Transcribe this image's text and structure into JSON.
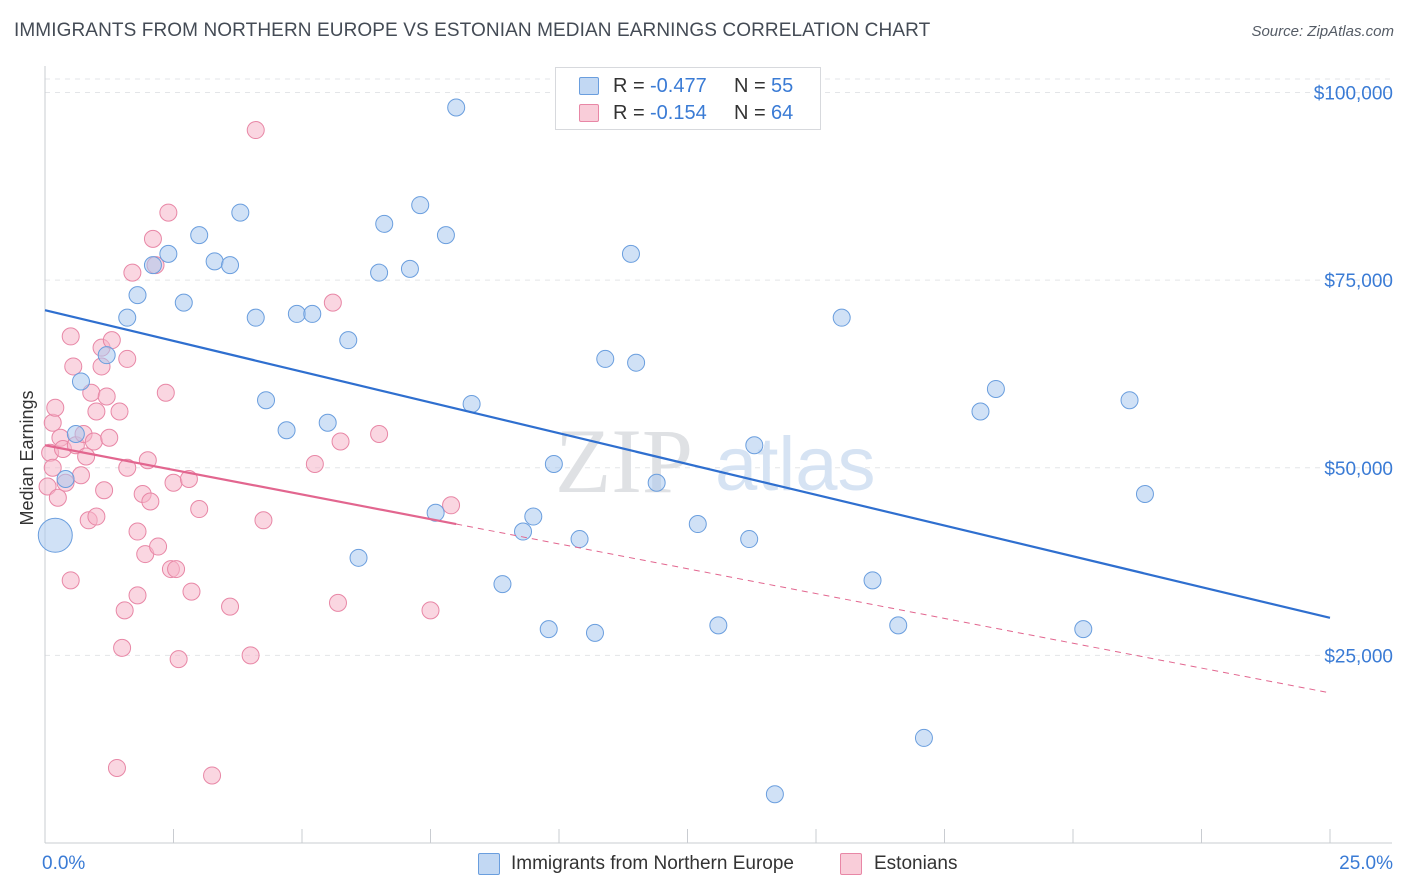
{
  "title": "IMMIGRANTS FROM NORTHERN EUROPE VS ESTONIAN MEDIAN EARNINGS CORRELATION CHART",
  "source": "Source: ZipAtlas.com",
  "watermark": {
    "zip": "ZIP",
    "atlas": "atlas"
  },
  "colors": {
    "blue_fill": "#a9c9ef",
    "blue_stroke": "#6a9ede",
    "blue_line": "#2f6fcf",
    "pink_fill": "#f6b5c8",
    "pink_stroke": "#e887a6",
    "pink_line": "#e2668f",
    "tick_text": "#3a7bd5",
    "grid": "#e3e5e8"
  },
  "legend": {
    "rows": [
      {
        "r_label": "R =",
        "r_value": "-0.477",
        "n_label": "N =",
        "n_value": "55"
      },
      {
        "r_label": "R =",
        "r_value": "-0.154",
        "n_label": "N =",
        "n_value": "64"
      }
    ]
  },
  "bottom_legend": [
    "Immigrants from Northern Europe",
    "Estonians"
  ],
  "chart_data": {
    "type": "scatter",
    "ylabel": "Median Earnings",
    "xlabel": "",
    "xlim": [
      0,
      25
    ],
    "ylim": [
      0,
      103000
    ],
    "x_tick_labels": [
      {
        "value": 0,
        "label": "0.0%"
      },
      {
        "value": 25,
        "label": "25.0%"
      }
    ],
    "y_tick_labels": [
      {
        "value": 25000,
        "label": "$25,000"
      },
      {
        "value": 50000,
        "label": "$50,000"
      },
      {
        "value": 75000,
        "label": "$75,000"
      },
      {
        "value": 100000,
        "label": "$100,000"
      }
    ],
    "grid": "horizontal dashed",
    "legend_position": "top-center",
    "series": [
      {
        "name": "Immigrants from Northern Europe",
        "color": "blue",
        "trend": {
          "x": [
            0,
            25
          ],
          "y": [
            71000,
            30000
          ],
          "dashed_to": null
        },
        "points": [
          [
            0.2,
            41000
          ],
          [
            0.4,
            48500
          ],
          [
            0.6,
            54500
          ],
          [
            0.7,
            61500
          ],
          [
            1.2,
            65000
          ],
          [
            1.6,
            70000
          ],
          [
            1.8,
            73000
          ],
          [
            2.1,
            77000
          ],
          [
            2.4,
            78500
          ],
          [
            2.7,
            72000
          ],
          [
            3.0,
            81000
          ],
          [
            3.3,
            77500
          ],
          [
            3.6,
            77000
          ],
          [
            3.8,
            84000
          ],
          [
            4.1,
            70000
          ],
          [
            4.3,
            59000
          ],
          [
            4.7,
            55000
          ],
          [
            4.9,
            70500
          ],
          [
            5.2,
            70500
          ],
          [
            5.5,
            56000
          ],
          [
            5.9,
            67000
          ],
          [
            6.1,
            38000
          ],
          [
            6.5,
            76000
          ],
          [
            6.6,
            82500
          ],
          [
            7.1,
            76500
          ],
          [
            7.3,
            85000
          ],
          [
            7.6,
            44000
          ],
          [
            7.8,
            81000
          ],
          [
            8.0,
            98000
          ],
          [
            8.3,
            58500
          ],
          [
            8.9,
            34500
          ],
          [
            9.3,
            41500
          ],
          [
            9.5,
            43500
          ],
          [
            9.8,
            28500
          ],
          [
            9.9,
            50500
          ],
          [
            10.4,
            40500
          ],
          [
            10.7,
            28000
          ],
          [
            10.9,
            64500
          ],
          [
            11.4,
            78500
          ],
          [
            11.5,
            64000
          ],
          [
            11.9,
            48000
          ],
          [
            12.7,
            42500
          ],
          [
            13.1,
            29000
          ],
          [
            13.7,
            40500
          ],
          [
            13.8,
            53000
          ],
          [
            14.2,
            6500
          ],
          [
            15.5,
            70000
          ],
          [
            16.1,
            35000
          ],
          [
            16.6,
            29000
          ],
          [
            17.1,
            14000
          ],
          [
            18.2,
            57500
          ],
          [
            18.5,
            60500
          ],
          [
            20.2,
            28500
          ],
          [
            21.1,
            59000
          ],
          [
            21.4,
            46500
          ]
        ]
      },
      {
        "name": "Estonians",
        "color": "pink",
        "trend": {
          "x": [
            0,
            8.0
          ],
          "y": [
            53000,
            42500
          ],
          "dashed_to": [
            25,
            20000
          ]
        },
        "points": [
          [
            0.05,
            47500
          ],
          [
            0.1,
            52000
          ],
          [
            0.15,
            56000
          ],
          [
            0.2,
            58000
          ],
          [
            0.3,
            54000
          ],
          [
            0.35,
            52500
          ],
          [
            0.4,
            48000
          ],
          [
            0.5,
            67500
          ],
          [
            0.5,
            35000
          ],
          [
            0.55,
            63500
          ],
          [
            0.6,
            53000
          ],
          [
            0.7,
            49000
          ],
          [
            0.75,
            54500
          ],
          [
            0.8,
            51500
          ],
          [
            0.85,
            43000
          ],
          [
            0.9,
            60000
          ],
          [
            0.95,
            53500
          ],
          [
            1.0,
            43500
          ],
          [
            1.0,
            57500
          ],
          [
            1.1,
            66000
          ],
          [
            1.1,
            63500
          ],
          [
            1.15,
            47000
          ],
          [
            1.2,
            59500
          ],
          [
            1.25,
            54000
          ],
          [
            1.3,
            67000
          ],
          [
            1.4,
            10000
          ],
          [
            1.45,
            57500
          ],
          [
            1.5,
            26000
          ],
          [
            1.55,
            31000
          ],
          [
            1.6,
            64500
          ],
          [
            1.6,
            50000
          ],
          [
            1.7,
            76000
          ],
          [
            1.8,
            41500
          ],
          [
            1.8,
            33000
          ],
          [
            1.9,
            46500
          ],
          [
            1.95,
            38500
          ],
          [
            2.0,
            51000
          ],
          [
            2.05,
            45500
          ],
          [
            2.1,
            80500
          ],
          [
            2.15,
            77000
          ],
          [
            2.2,
            39500
          ],
          [
            2.35,
            60000
          ],
          [
            2.4,
            84000
          ],
          [
            2.45,
            36500
          ],
          [
            2.5,
            48000
          ],
          [
            2.55,
            36500
          ],
          [
            2.6,
            24500
          ],
          [
            2.8,
            48500
          ],
          [
            2.85,
            33500
          ],
          [
            3.0,
            44500
          ],
          [
            3.25,
            9000
          ],
          [
            3.6,
            31500
          ],
          [
            4.0,
            25000
          ],
          [
            4.1,
            95000
          ],
          [
            4.25,
            43000
          ],
          [
            5.25,
            50500
          ],
          [
            5.6,
            72000
          ],
          [
            5.7,
            32000
          ],
          [
            5.75,
            53500
          ],
          [
            6.5,
            54500
          ],
          [
            7.5,
            31000
          ],
          [
            7.9,
            45000
          ],
          [
            0.15,
            50000
          ],
          [
            0.25,
            46000
          ]
        ]
      }
    ],
    "marker_radius_units": "point size scaled by population; the largest marker sits near x=0.2"
  }
}
